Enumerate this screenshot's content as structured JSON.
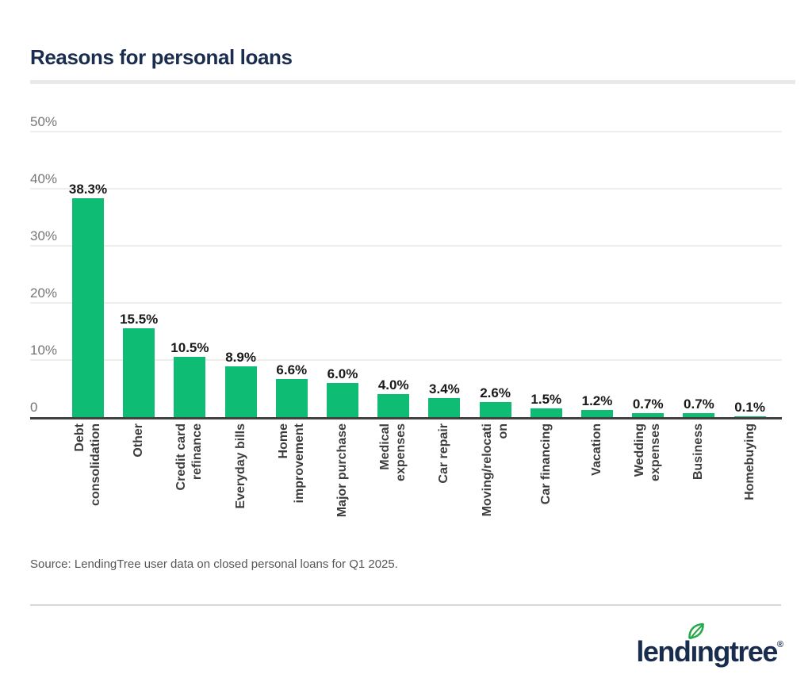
{
  "page": {
    "title": "Reasons for personal loans"
  },
  "source": {
    "text": "Source: LendingTree user data on closed personal loans for Q1 2025."
  },
  "logo": {
    "brand": "lendingtree",
    "registered": "®"
  },
  "colors": {
    "bar_green": "#0fbc74",
    "brand_navy": "#1b2d4f",
    "logo_navy": "#182c4d",
    "leaf_green": "#2aa94c",
    "axis_dark": "#414141",
    "gridline": "#f0eeeb",
    "ytick_gray": "#757575",
    "xlabel_gray": "#3d3d3d",
    "source_gray": "#55575a"
  },
  "chart_data": {
    "type": "bar",
    "title": "Reasons for personal loans",
    "categories": [
      "Debt consolidation",
      "Other",
      "Credit card refinance",
      "Everyday bills",
      "Home improvement",
      "Major purchase",
      "Medical expenses",
      "Car repair",
      "Moving/relocation",
      "Car financing",
      "Vacation",
      "Wedding expenses",
      "Business",
      "Homebuying"
    ],
    "category_lines": [
      [
        "Debt",
        "consolidation"
      ],
      [
        "Other"
      ],
      [
        "Credit card",
        "refinance"
      ],
      [
        "Everyday bills"
      ],
      [
        "Home",
        "improvement"
      ],
      [
        "Major purchase"
      ],
      [
        "Medical",
        "expenses"
      ],
      [
        "Car repair"
      ],
      [
        "Moving/relocati",
        "on"
      ],
      [
        "Car financing"
      ],
      [
        "Vacation"
      ],
      [
        "Wedding",
        "expenses"
      ],
      [
        "Business"
      ],
      [
        "Homebuying"
      ]
    ],
    "values": [
      38.3,
      15.5,
      10.5,
      8.9,
      6.6,
      6.0,
      4.0,
      3.4,
      2.6,
      1.5,
      1.2,
      0.7,
      0.7,
      0.1
    ],
    "value_labels": [
      "38.3%",
      "15.5%",
      "10.5%",
      "8.9%",
      "6.6%",
      "6.0%",
      "4.0%",
      "3.4%",
      "2.6%",
      "1.5%",
      "1.2%",
      "0.7%",
      "0.7%",
      "0.1%"
    ],
    "yticks": [
      0,
      10,
      20,
      30,
      40,
      50
    ],
    "ytick_labels": [
      "0",
      "10%",
      "20%",
      "30%",
      "40%",
      "50%"
    ],
    "ylim": [
      0,
      50
    ],
    "grid": true,
    "legend_position": "none",
    "bar_color": "#0fbc74"
  }
}
